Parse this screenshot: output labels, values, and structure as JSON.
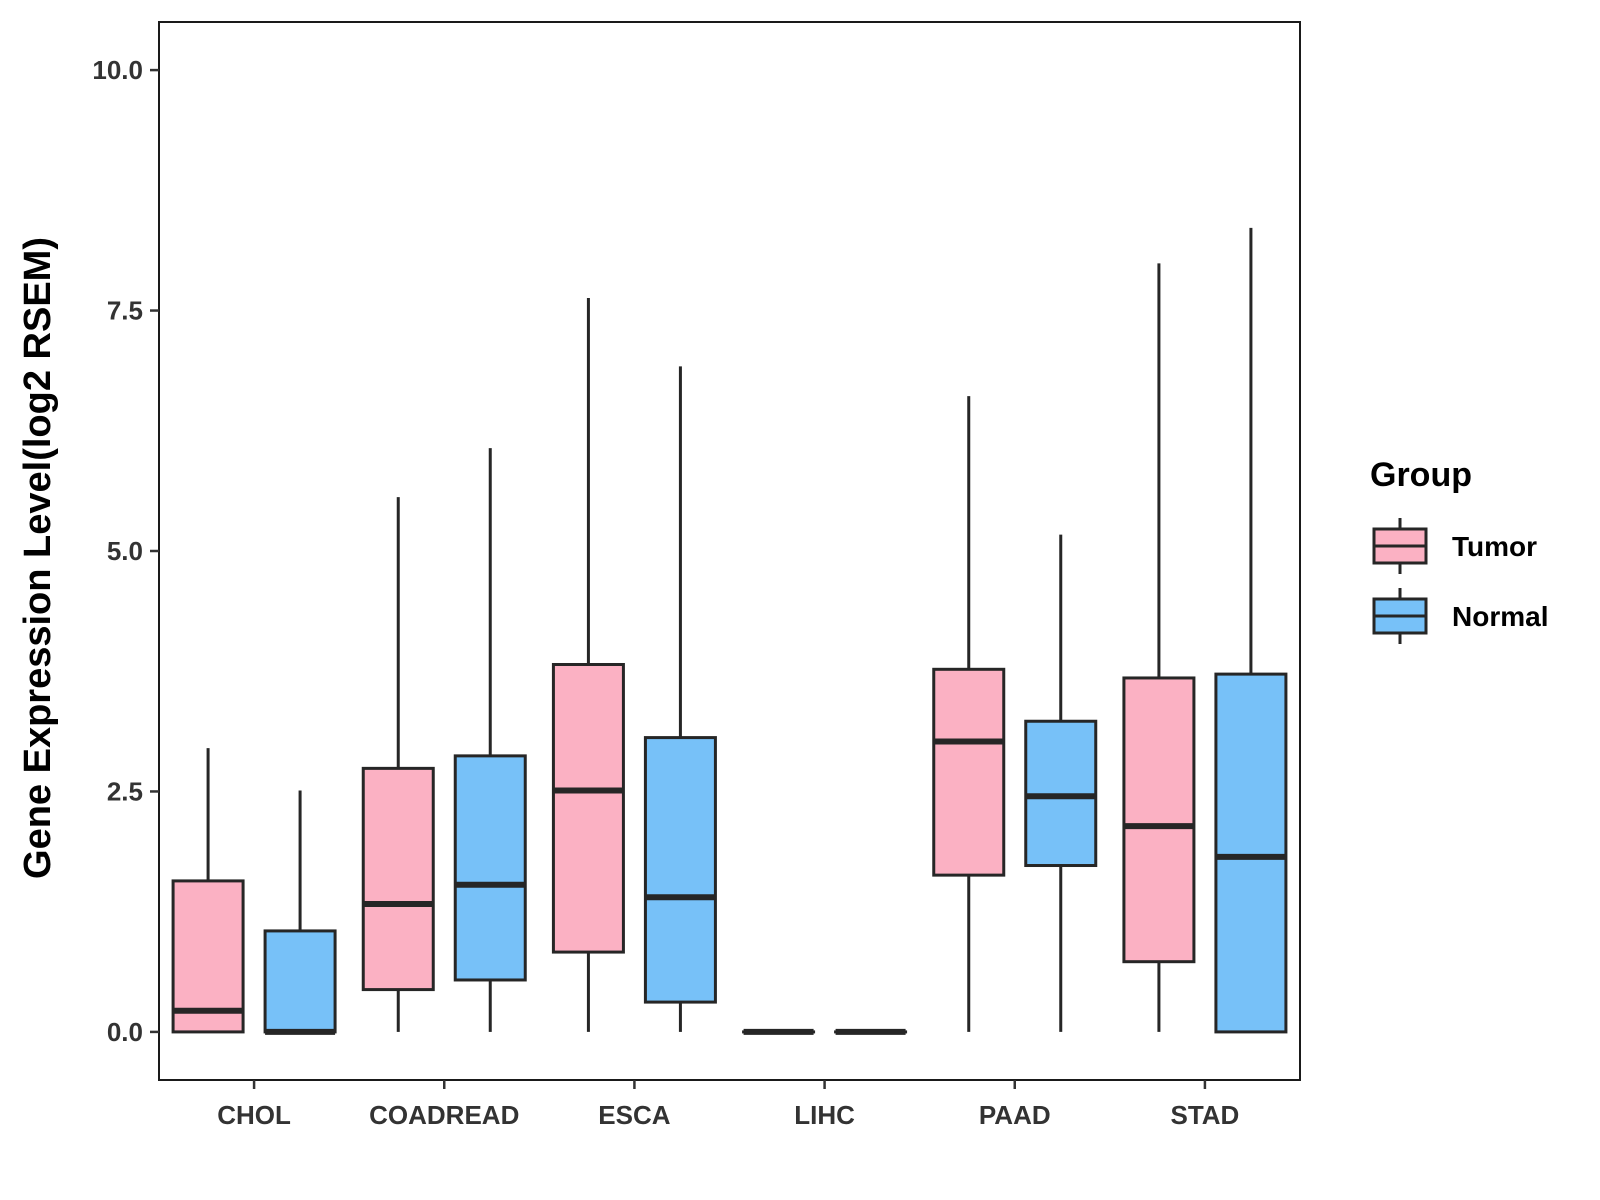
{
  "chart_data": {
    "type": "boxplot",
    "ylabel": "Gene Expression Level(log2 RSEM)",
    "xlabel": "",
    "ylim": [
      -0.5,
      10.5
    ],
    "yticks": [
      0.0,
      2.5,
      5.0,
      7.5,
      10.0
    ],
    "ytick_labels": [
      "0.0",
      "2.5",
      "5.0",
      "7.5",
      "10.0"
    ],
    "categories": [
      "CHOL",
      "COADREAD",
      "ESCA",
      "LIHC",
      "PAAD",
      "STAD"
    ],
    "legend": {
      "title": "Group",
      "position": "right",
      "items": [
        {
          "name": "Tumor",
          "color": "#FBB1C3"
        },
        {
          "name": "Normal",
          "color": "#77C1F8"
        }
      ]
    },
    "series": [
      {
        "name": "Tumor",
        "color": "#FBB1C3",
        "boxes": [
          {
            "category": "CHOL",
            "min": 0.0,
            "q1": 0.0,
            "median": 0.22,
            "q3": 1.57,
            "max": 2.95
          },
          {
            "category": "COADREAD",
            "min": 0.0,
            "q1": 0.44,
            "median": 1.33,
            "q3": 2.74,
            "max": 5.56
          },
          {
            "category": "ESCA",
            "min": 0.0,
            "q1": 0.83,
            "median": 2.51,
            "q3": 3.82,
            "max": 7.63
          },
          {
            "category": "LIHC",
            "min": 0.0,
            "q1": 0.0,
            "median": 0.0,
            "q3": 0.0,
            "max": 0.0
          },
          {
            "category": "PAAD",
            "min": 0.0,
            "q1": 1.63,
            "median": 3.02,
            "q3": 3.77,
            "max": 6.61
          },
          {
            "category": "STAD",
            "min": 0.0,
            "q1": 0.73,
            "median": 2.14,
            "q3": 3.68,
            "max": 7.99
          }
        ]
      },
      {
        "name": "Normal",
        "color": "#77C1F8",
        "boxes": [
          {
            "category": "CHOL",
            "min": 0.0,
            "q1": 0.0,
            "median": 0.0,
            "q3": 1.05,
            "max": 2.51
          },
          {
            "category": "COADREAD",
            "min": 0.0,
            "q1": 0.54,
            "median": 1.53,
            "q3": 2.87,
            "max": 6.07
          },
          {
            "category": "ESCA",
            "min": 0.0,
            "q1": 0.31,
            "median": 1.4,
            "q3": 3.06,
            "max": 6.92
          },
          {
            "category": "LIHC",
            "min": 0.0,
            "q1": 0.0,
            "median": 0.0,
            "q3": 0.0,
            "max": 0.0
          },
          {
            "category": "PAAD",
            "min": 0.0,
            "q1": 1.73,
            "median": 2.45,
            "q3": 3.23,
            "max": 5.17
          },
          {
            "category": "STAD",
            "min": 0.0,
            "q1": 0.0,
            "median": 1.82,
            "q3": 3.72,
            "max": 8.36
          }
        ]
      }
    ]
  }
}
